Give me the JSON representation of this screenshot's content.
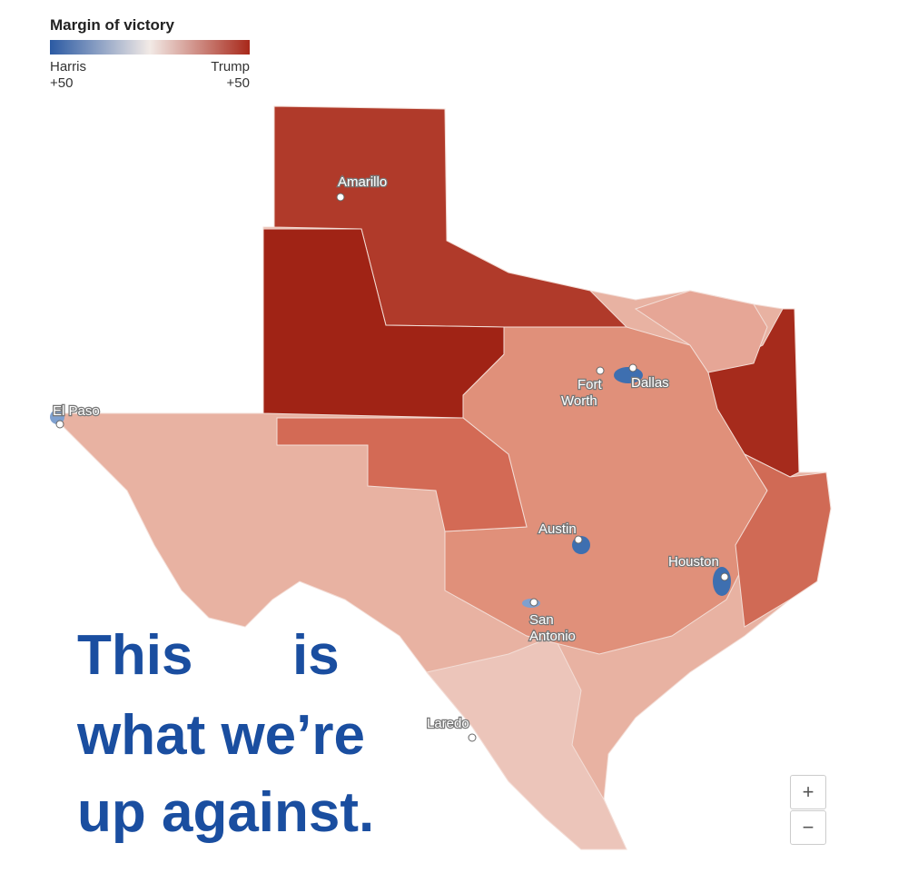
{
  "legend": {
    "title": "Margin of victory",
    "left_label": "Harris",
    "left_value": "+50",
    "right_label": "Trump",
    "right_value": "+50"
  },
  "cities": [
    {
      "lines": [
        "Amarillo"
      ]
    },
    {
      "lines": [
        "Fort",
        "Worth"
      ]
    },
    {
      "lines": [
        "Dallas"
      ]
    },
    {
      "lines": [
        "El Paso"
      ]
    },
    {
      "lines": [
        "Austin"
      ]
    },
    {
      "lines": [
        "Houston"
      ]
    },
    {
      "lines": [
        "San",
        "Antonio"
      ]
    },
    {
      "lines": [
        "Laredo"
      ]
    }
  ],
  "headline": {
    "lines": [
      "This",
      "is",
      "what we’re",
      "up against."
    ]
  },
  "zoom": {
    "in": "+",
    "out": "−"
  }
}
